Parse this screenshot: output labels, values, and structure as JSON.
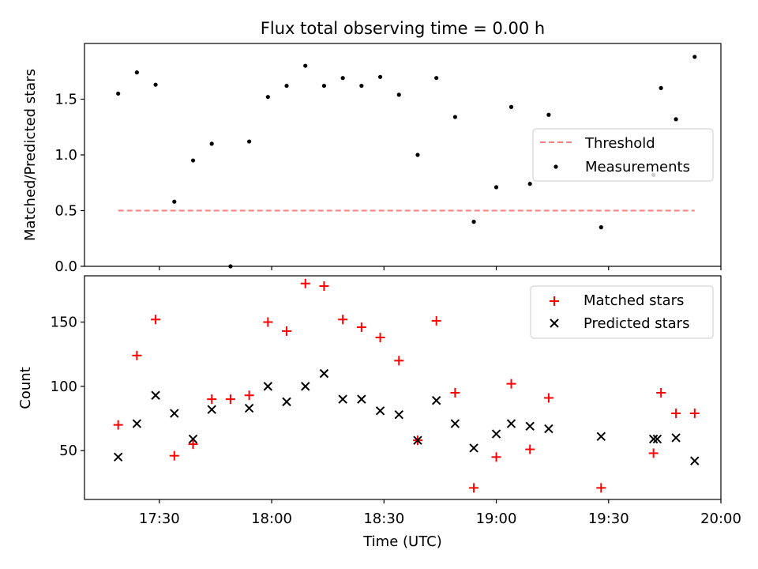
{
  "colors": {
    "threshold": "#ff7f7f",
    "measurements": "#000000",
    "matched": "#ff0000",
    "predicted": "#000000",
    "axes": "#000000",
    "background": "#ffffff"
  },
  "chart_data": [
    {
      "type": "scatter",
      "title": "Flux total observing time = 0.00 h",
      "xlabel": "",
      "ylabel": "Matched/Predicted stars",
      "xlim": [
        "17:10",
        "20:00"
      ],
      "ylim": [
        0,
        2.0
      ],
      "yticks": [
        "0.0",
        "0.5",
        "1.0",
        "1.5"
      ],
      "ytick_values": [
        0,
        0.5,
        1.0,
        1.5
      ],
      "legend_position": "center-right",
      "series": [
        {
          "name": "Threshold",
          "kind": "dashed-line",
          "x": [
            "17:19",
            "19:53"
          ],
          "y": [
            0.5,
            0.5
          ]
        },
        {
          "name": "Measurements",
          "kind": "dot",
          "x": [
            "17:19",
            "17:24",
            "17:29",
            "17:34",
            "17:39",
            "17:44",
            "17:49",
            "17:54",
            "17:59",
            "18:04",
            "18:09",
            "18:14",
            "18:19",
            "18:24",
            "18:29",
            "18:34",
            "18:39",
            "18:44",
            "18:49",
            "18:54",
            "19:00",
            "19:04",
            "19:09",
            "19:14",
            "19:28",
            "19:42",
            "19:44",
            "19:48",
            "19:53"
          ],
          "y": [
            1.55,
            1.74,
            1.63,
            0.58,
            0.95,
            1.1,
            0.0,
            1.12,
            1.52,
            1.62,
            1.8,
            1.62,
            1.69,
            1.62,
            1.7,
            1.54,
            1.0,
            1.69,
            1.34,
            0.4,
            0.71,
            1.43,
            0.74,
            1.36,
            0.35,
            0.82,
            1.6,
            1.32,
            1.88
          ]
        }
      ]
    },
    {
      "type": "scatter",
      "title": "",
      "xlabel": "Time (UTC)",
      "ylabel": "Count",
      "xlim": [
        "17:10",
        "20:00"
      ],
      "xticks": [
        "17:30",
        "18:00",
        "18:30",
        "19:00",
        "19:30",
        "20:00"
      ],
      "ylim": [
        12,
        186
      ],
      "yticks": [
        "50",
        "100",
        "150"
      ],
      "ytick_values": [
        50,
        100,
        150
      ],
      "legend_position": "upper-right",
      "series": [
        {
          "name": "Matched stars",
          "kind": "plus",
          "x": [
            "17:19",
            "17:24",
            "17:29",
            "17:34",
            "17:39",
            "17:44",
            "17:49",
            "17:54",
            "17:59",
            "18:04",
            "18:09",
            "18:14",
            "18:19",
            "18:24",
            "18:29",
            "18:34",
            "18:39",
            "18:44",
            "18:49",
            "18:54",
            "19:00",
            "19:04",
            "19:09",
            "19:14",
            "19:28",
            "19:42",
            "19:44",
            "19:48",
            "19:53"
          ],
          "y": [
            70,
            124,
            152,
            46,
            55,
            90,
            90,
            93,
            150,
            143,
            180,
            178,
            152,
            146,
            138,
            120,
            58,
            151,
            95,
            21,
            45,
            102,
            51,
            91,
            21,
            48,
            95,
            79,
            79
          ]
        },
        {
          "name": "Predicted stars",
          "kind": "x",
          "x": [
            "17:19",
            "17:24",
            "17:29",
            "17:34",
            "17:39",
            "17:44",
            "17:54",
            "17:59",
            "18:04",
            "18:09",
            "18:14",
            "18:19",
            "18:24",
            "18:29",
            "18:34",
            "18:39",
            "18:44",
            "18:49",
            "18:54",
            "19:00",
            "19:04",
            "19:09",
            "19:14",
            "19:28",
            "19:42",
            "19:43",
            "19:48",
            "19:53"
          ],
          "y": [
            45,
            71,
            93,
            79,
            59,
            82,
            83,
            100,
            88,
            100,
            110,
            90,
            90,
            81,
            78,
            58,
            89,
            71,
            52,
            63,
            71,
            69,
            67,
            61,
            59,
            59,
            60,
            42
          ]
        }
      ]
    }
  ]
}
